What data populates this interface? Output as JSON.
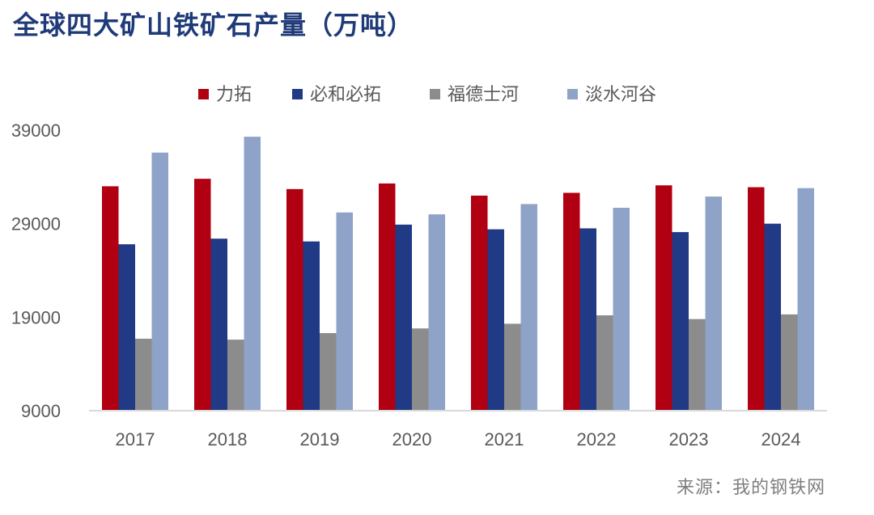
{
  "title": "全球四大矿山铁矿石产量（万吨）",
  "source": "来源：我的钢铁网",
  "chart_data": {
    "type": "bar",
    "categories": [
      "2017",
      "2018",
      "2019",
      "2020",
      "2021",
      "2022",
      "2023",
      "2024"
    ],
    "series": [
      {
        "name": "力拓",
        "color": "#b00012",
        "values": [
          33000,
          33800,
          32700,
          33300,
          32000,
          32300,
          33100,
          32900
        ]
      },
      {
        "name": "必和必拓",
        "color": "#213a86",
        "values": [
          26800,
          27400,
          27100,
          28900,
          28400,
          28500,
          28100,
          29000
        ]
      },
      {
        "name": "福德士河",
        "color": "#8c8c8c",
        "values": [
          16700,
          16600,
          17300,
          17800,
          18300,
          19200,
          18800,
          19300
        ]
      },
      {
        "name": "淡水河谷",
        "color": "#8fa3c8",
        "values": [
          36600,
          38300,
          30200,
          30000,
          31100,
          30700,
          31900,
          32800
        ]
      }
    ],
    "ylim": [
      9000,
      39000
    ],
    "yticks": [
      9000,
      19000,
      29000,
      39000
    ],
    "legend_position": "top",
    "grid": false
  }
}
